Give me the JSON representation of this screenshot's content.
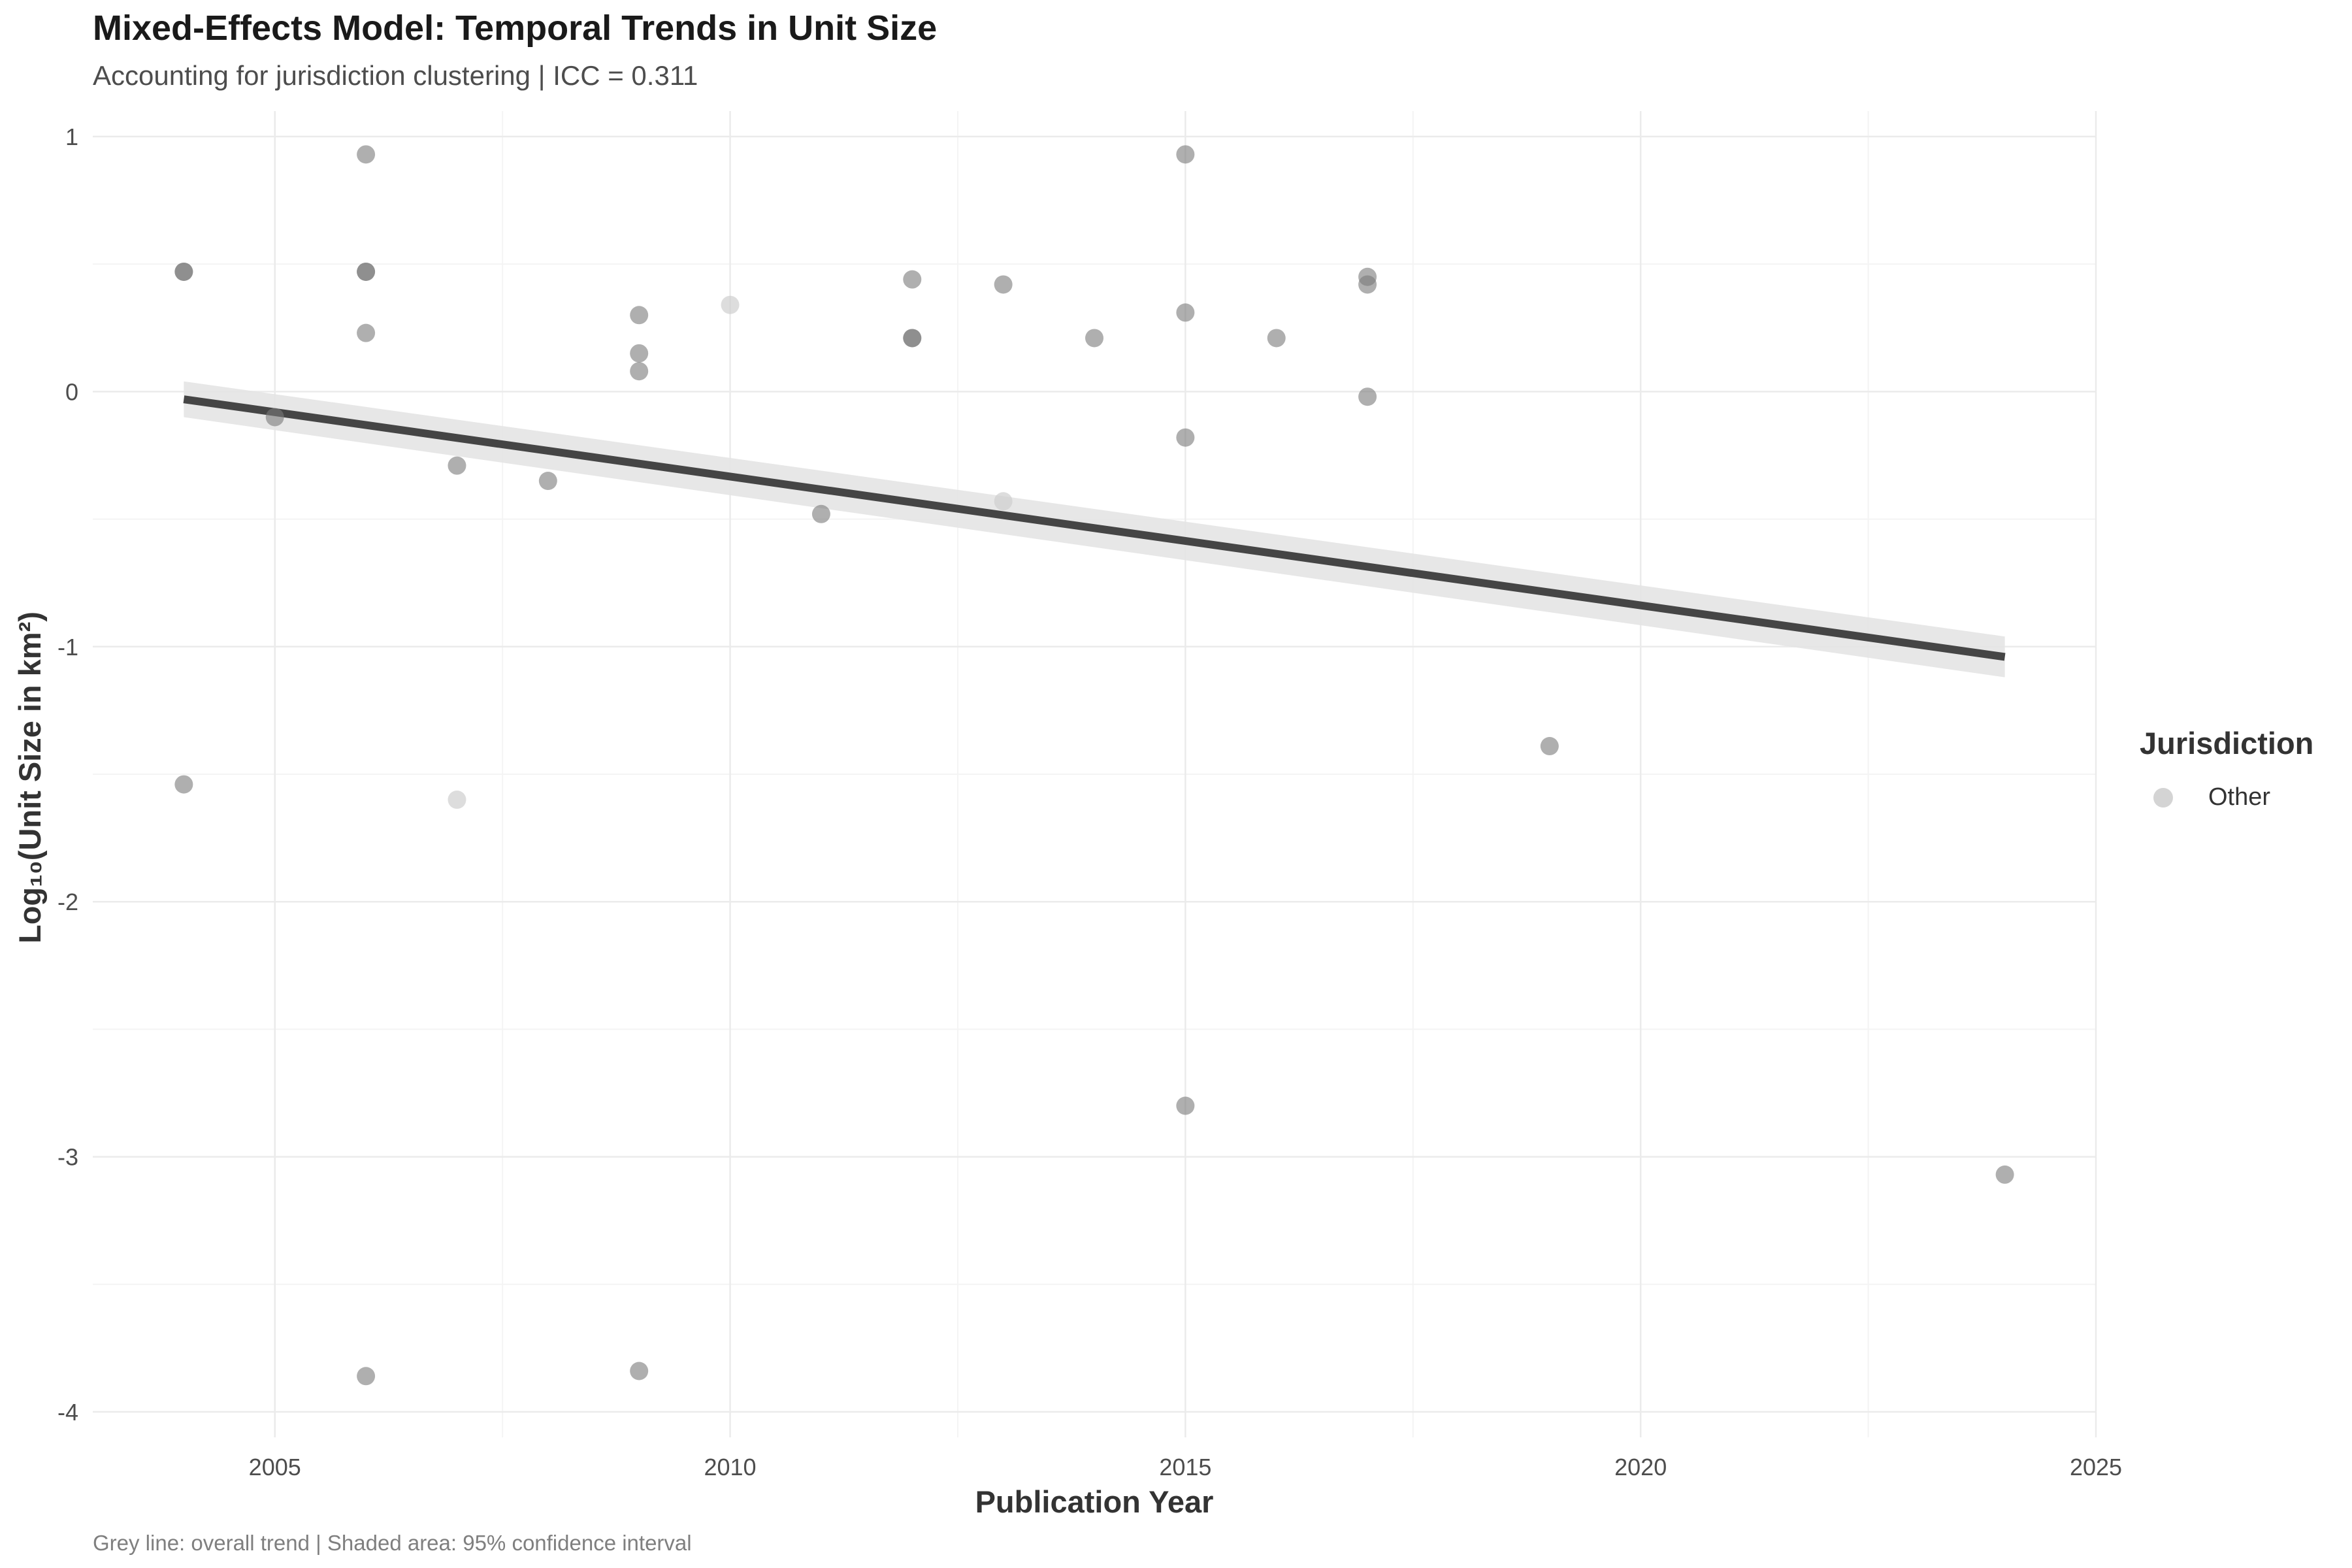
{
  "chart_data": {
    "type": "scatter",
    "title": "Mixed-Effects Model: Temporal Trends in Unit Size",
    "subtitle": "Accounting for jurisdiction clustering | ICC = 0.311",
    "caption": "Grey line: overall trend | Shaded area: 95% confidence interval",
    "xlabel": "Publication Year",
    "ylabel": "Log₁₀(Unit Size in km²)",
    "xlim": [
      2003,
      2025
    ],
    "ylim": [
      -4.1,
      1.1
    ],
    "x_ticks": [
      2005,
      2010,
      2015,
      2020,
      2025
    ],
    "x_tick_labels": [
      "2005",
      "2010",
      "2015",
      "2020",
      "2025"
    ],
    "y_ticks": [
      1,
      0,
      -1,
      -2,
      -3,
      -4
    ],
    "y_tick_labels": [
      "1",
      "0",
      "-1",
      "-2",
      "-3",
      "-4"
    ],
    "grid": true,
    "legend": {
      "title": "Jurisdiction",
      "position": "right",
      "entries": [
        {
          "label": "Other",
          "color": "#d4d4d4"
        }
      ]
    },
    "point_color": "#7a7a7a",
    "highlight_point_color": "#cfcfcf",
    "points": [
      {
        "x": 2004,
        "y": 0.47
      },
      {
        "x": 2004,
        "y": 0.47
      },
      {
        "x": 2004,
        "y": -1.54
      },
      {
        "x": 2005,
        "y": -0.1
      },
      {
        "x": 2006,
        "y": 0.93
      },
      {
        "x": 2006,
        "y": 0.47
      },
      {
        "x": 2006,
        "y": 0.47
      },
      {
        "x": 2006,
        "y": 0.23
      },
      {
        "x": 2006,
        "y": -3.86
      },
      {
        "x": 2007,
        "y": -0.29
      },
      {
        "x": 2007,
        "y": -1.6,
        "group": "highlight"
      },
      {
        "x": 2008,
        "y": -0.35
      },
      {
        "x": 2009,
        "y": 0.3
      },
      {
        "x": 2009,
        "y": 0.15
      },
      {
        "x": 2009,
        "y": 0.08
      },
      {
        "x": 2009,
        "y": -3.84
      },
      {
        "x": 2010,
        "y": 0.34,
        "group": "highlight"
      },
      {
        "x": 2011,
        "y": -0.48
      },
      {
        "x": 2012,
        "y": 0.44
      },
      {
        "x": 2012,
        "y": 0.21
      },
      {
        "x": 2012,
        "y": 0.21
      },
      {
        "x": 2013,
        "y": 0.42
      },
      {
        "x": 2013,
        "y": -0.43,
        "group": "highlight"
      },
      {
        "x": 2014,
        "y": 0.21
      },
      {
        "x": 2015,
        "y": 0.93
      },
      {
        "x": 2015,
        "y": 0.31
      },
      {
        "x": 2015,
        "y": -0.18
      },
      {
        "x": 2015,
        "y": -2.8
      },
      {
        "x": 2016,
        "y": 0.21
      },
      {
        "x": 2017,
        "y": 0.45
      },
      {
        "x": 2017,
        "y": 0.42
      },
      {
        "x": 2017,
        "y": -0.02
      },
      {
        "x": 2019,
        "y": -1.39
      },
      {
        "x": 2024,
        "y": -3.07
      }
    ],
    "trend_line": {
      "color": "#454545",
      "points": [
        {
          "x": 2004,
          "y": -0.03
        },
        {
          "x": 2024,
          "y": -1.04
        }
      ]
    },
    "confidence_band": {
      "color": "#e4e4e4",
      "points": [
        {
          "x": 2004,
          "y_low": -0.1,
          "y_high": 0.04
        },
        {
          "x": 2024,
          "y_low": -1.12,
          "y_high": -0.96
        }
      ]
    }
  }
}
